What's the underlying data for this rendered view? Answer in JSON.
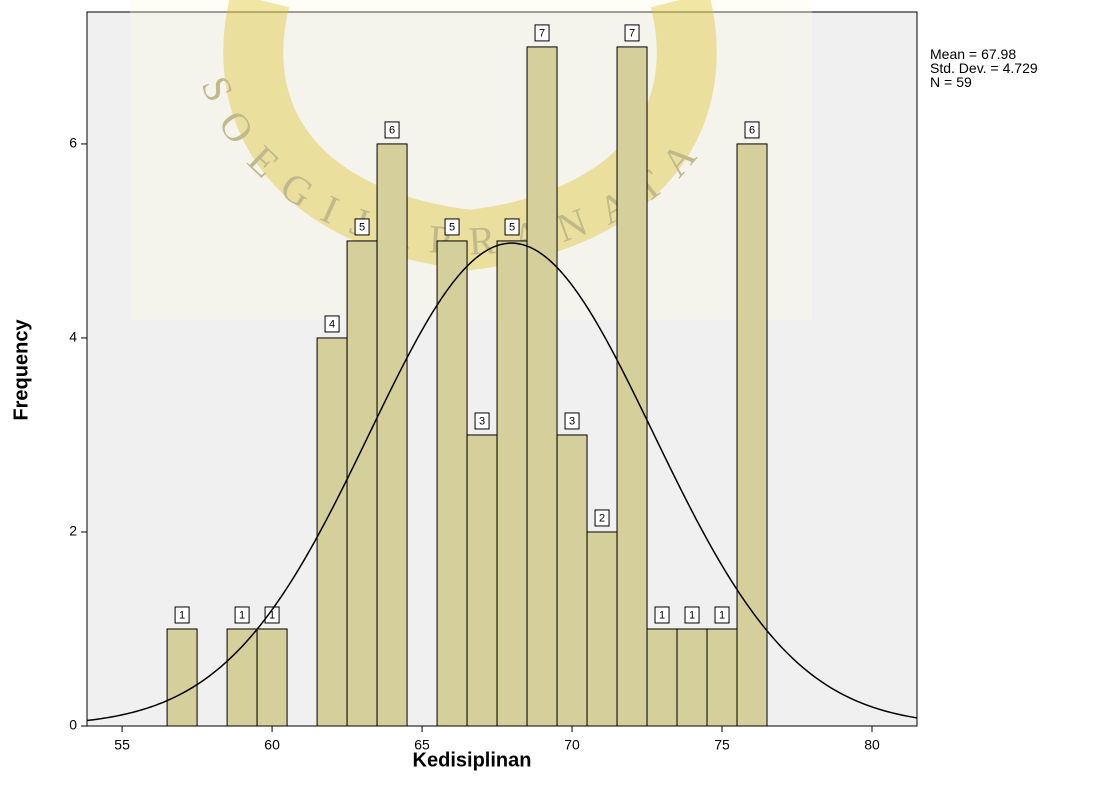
{
  "chart_data": {
    "type": "histogram",
    "xlabel": "Kedisiplinan",
    "ylabel": "Frequency",
    "bins": [
      56.5,
      57.5,
      58.5,
      59.5,
      60.5,
      61.5,
      62.5,
      63.5,
      64.5,
      65.5,
      66.5,
      67.5,
      68.5,
      69.5,
      70.5,
      71.5,
      72.5,
      73.5,
      74.5,
      75.5,
      76.5
    ],
    "counts": [
      1,
      0,
      1,
      1,
      0,
      4,
      5,
      6,
      0,
      5,
      3,
      5,
      7,
      3,
      2,
      7,
      1,
      1,
      1,
      6
    ],
    "color": "#d5cf9c",
    "xlim": [
      53.83,
      81.5
    ],
    "xticks": [
      55,
      60,
      65,
      70,
      75,
      80
    ],
    "ylim": [
      0,
      7.36
    ],
    "yticks": [
      0,
      2,
      4,
      6
    ],
    "stats": [
      {
        "label": "Mean =",
        "value": 67.98
      },
      {
        "label": "Std. Dev. =",
        "value": 4.729
      },
      {
        "label": "N =",
        "value": 59
      }
    ],
    "watermark": "SOEGIJAPRANATA"
  }
}
